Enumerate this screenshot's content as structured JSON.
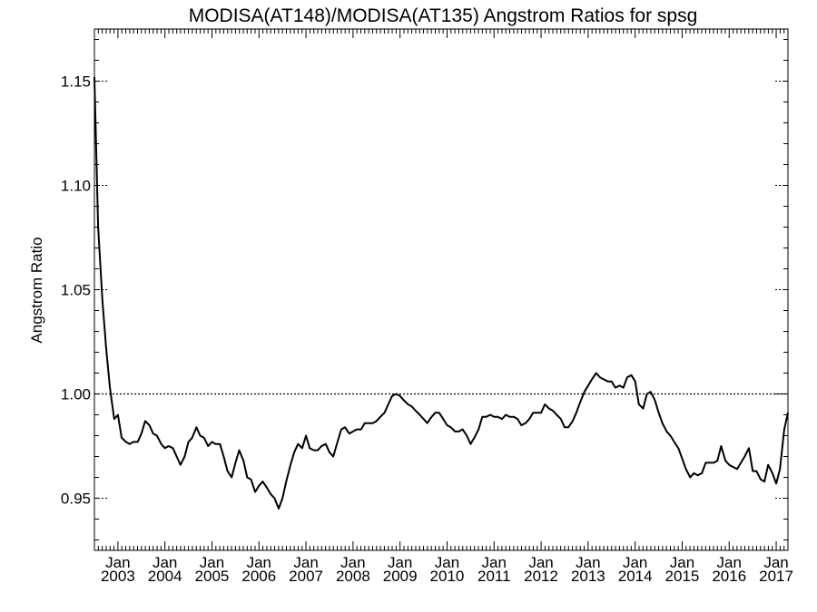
{
  "chart_data": {
    "type": "line",
    "title": "MODISA(AT148)/MODISA(AT135)  Angstrom Ratios for spsg",
    "xlabel": "",
    "ylabel": "Angstrom Ratio",
    "ylim": [
      0.925,
      1.175
    ],
    "yticks": [
      "0.95",
      "1.00",
      "1.05",
      "1.10",
      "1.15"
    ],
    "xlim": [
      2002.5,
      2017.25
    ],
    "xticks": [
      {
        "month": "Jan",
        "year": "2003"
      },
      {
        "month": "Jan",
        "year": "2004"
      },
      {
        "month": "Jan",
        "year": "2005"
      },
      {
        "month": "Jan",
        "year": "2006"
      },
      {
        "month": "Jan",
        "year": "2007"
      },
      {
        "month": "Jan",
        "year": "2008"
      },
      {
        "month": "Jan",
        "year": "2009"
      },
      {
        "month": "Jan",
        "year": "2010"
      },
      {
        "month": "Jan",
        "year": "2011"
      },
      {
        "month": "Jan",
        "year": "2012"
      },
      {
        "month": "Jan",
        "year": "2013"
      },
      {
        "month": "Jan",
        "year": "2014"
      },
      {
        "month": "Jan",
        "year": "2015"
      },
      {
        "month": "Jan",
        "year": "2016"
      },
      {
        "month": "Jan",
        "year": "2017"
      }
    ],
    "reference_line": 1.0,
    "grid": false,
    "series": [
      {
        "values": [
          [
            2002.5,
            1.152
          ],
          [
            2002.58,
            1.08
          ],
          [
            2002.67,
            1.045
          ],
          [
            2002.75,
            1.022
          ],
          [
            2002.83,
            1.003
          ],
          [
            2002.92,
            0.988
          ],
          [
            2003.0,
            0.99
          ],
          [
            2003.08,
            0.979
          ],
          [
            2003.17,
            0.977
          ],
          [
            2003.25,
            0.976
          ],
          [
            2003.33,
            0.977
          ],
          [
            2003.42,
            0.977
          ],
          [
            2003.5,
            0.981
          ],
          [
            2003.58,
            0.987
          ],
          [
            2003.67,
            0.985
          ],
          [
            2003.75,
            0.981
          ],
          [
            2003.83,
            0.98
          ],
          [
            2003.92,
            0.976
          ],
          [
            2004.0,
            0.974
          ],
          [
            2004.08,
            0.975
          ],
          [
            2004.17,
            0.974
          ],
          [
            2004.25,
            0.97
          ],
          [
            2004.33,
            0.966
          ],
          [
            2004.42,
            0.97
          ],
          [
            2004.5,
            0.977
          ],
          [
            2004.58,
            0.979
          ],
          [
            2004.67,
            0.984
          ],
          [
            2004.75,
            0.98
          ],
          [
            2004.83,
            0.979
          ],
          [
            2004.92,
            0.975
          ],
          [
            2005.0,
            0.977
          ],
          [
            2005.08,
            0.976
          ],
          [
            2005.17,
            0.976
          ],
          [
            2005.25,
            0.97
          ],
          [
            2005.33,
            0.963
          ],
          [
            2005.42,
            0.96
          ],
          [
            2005.5,
            0.967
          ],
          [
            2005.58,
            0.973
          ],
          [
            2005.67,
            0.968
          ],
          [
            2005.75,
            0.96
          ],
          [
            2005.83,
            0.959
          ],
          [
            2005.92,
            0.953
          ],
          [
            2006.0,
            0.956
          ],
          [
            2006.08,
            0.958
          ],
          [
            2006.17,
            0.955
          ],
          [
            2006.25,
            0.952
          ],
          [
            2006.33,
            0.95
          ],
          [
            2006.42,
            0.945
          ],
          [
            2006.5,
            0.95
          ],
          [
            2006.58,
            0.958
          ],
          [
            2006.67,
            0.966
          ],
          [
            2006.75,
            0.972
          ],
          [
            2006.83,
            0.976
          ],
          [
            2006.92,
            0.974
          ],
          [
            2007.0,
            0.98
          ],
          [
            2007.08,
            0.974
          ],
          [
            2007.17,
            0.973
          ],
          [
            2007.25,
            0.973
          ],
          [
            2007.33,
            0.975
          ],
          [
            2007.42,
            0.976
          ],
          [
            2007.5,
            0.972
          ],
          [
            2007.58,
            0.97
          ],
          [
            2007.67,
            0.977
          ],
          [
            2007.75,
            0.983
          ],
          [
            2007.83,
            0.984
          ],
          [
            2007.92,
            0.981
          ],
          [
            2008.0,
            0.982
          ],
          [
            2008.08,
            0.983
          ],
          [
            2008.17,
            0.983
          ],
          [
            2008.25,
            0.986
          ],
          [
            2008.33,
            0.986
          ],
          [
            2008.42,
            0.986
          ],
          [
            2008.5,
            0.987
          ],
          [
            2008.58,
            0.989
          ],
          [
            2008.67,
            0.991
          ],
          [
            2008.75,
            0.995
          ],
          [
            2008.83,
            0.999
          ],
          [
            2008.92,
            1.0
          ],
          [
            2009.0,
            0.999
          ],
          [
            2009.08,
            0.997
          ],
          [
            2009.17,
            0.995
          ],
          [
            2009.25,
            0.994
          ],
          [
            2009.33,
            0.992
          ],
          [
            2009.42,
            0.99
          ],
          [
            2009.5,
            0.988
          ],
          [
            2009.58,
            0.986
          ],
          [
            2009.67,
            0.989
          ],
          [
            2009.75,
            0.991
          ],
          [
            2009.83,
            0.991
          ],
          [
            2009.92,
            0.988
          ],
          [
            2010.0,
            0.985
          ],
          [
            2010.08,
            0.984
          ],
          [
            2010.17,
            0.982
          ],
          [
            2010.25,
            0.982
          ],
          [
            2010.33,
            0.983
          ],
          [
            2010.42,
            0.98
          ],
          [
            2010.5,
            0.976
          ],
          [
            2010.58,
            0.979
          ],
          [
            2010.67,
            0.983
          ],
          [
            2010.75,
            0.989
          ],
          [
            2010.83,
            0.989
          ],
          [
            2010.92,
            0.99
          ],
          [
            2011.0,
            0.989
          ],
          [
            2011.08,
            0.989
          ],
          [
            2011.17,
            0.988
          ],
          [
            2011.25,
            0.99
          ],
          [
            2011.33,
            0.989
          ],
          [
            2011.42,
            0.989
          ],
          [
            2011.5,
            0.988
          ],
          [
            2011.58,
            0.985
          ],
          [
            2011.67,
            0.986
          ],
          [
            2011.75,
            0.988
          ],
          [
            2011.83,
            0.991
          ],
          [
            2011.92,
            0.991
          ],
          [
            2012.0,
            0.991
          ],
          [
            2012.08,
            0.995
          ],
          [
            2012.17,
            0.993
          ],
          [
            2012.25,
            0.992
          ],
          [
            2012.33,
            0.99
          ],
          [
            2012.42,
            0.988
          ],
          [
            2012.5,
            0.984
          ],
          [
            2012.58,
            0.984
          ],
          [
            2012.67,
            0.987
          ],
          [
            2012.75,
            0.991
          ],
          [
            2012.83,
            0.996
          ],
          [
            2012.92,
            1.001
          ],
          [
            2013.0,
            1.004
          ],
          [
            2013.08,
            1.007
          ],
          [
            2013.17,
            1.01
          ],
          [
            2013.25,
            1.008
          ],
          [
            2013.33,
            1.007
          ],
          [
            2013.42,
            1.006
          ],
          [
            2013.5,
            1.006
          ],
          [
            2013.58,
            1.003
          ],
          [
            2013.67,
            1.004
          ],
          [
            2013.75,
            1.003
          ],
          [
            2013.83,
            1.008
          ],
          [
            2013.92,
            1.009
          ],
          [
            2014.0,
            1.006
          ],
          [
            2014.08,
            0.995
          ],
          [
            2014.17,
            0.993
          ],
          [
            2014.25,
            1.0
          ],
          [
            2014.33,
            1.001
          ],
          [
            2014.42,
            0.997
          ],
          [
            2014.5,
            0.991
          ],
          [
            2014.58,
            0.986
          ],
          [
            2014.67,
            0.982
          ],
          [
            2014.75,
            0.98
          ],
          [
            2014.83,
            0.977
          ],
          [
            2014.92,
            0.974
          ],
          [
            2015.0,
            0.969
          ],
          [
            2015.08,
            0.964
          ],
          [
            2015.17,
            0.96
          ],
          [
            2015.25,
            0.962
          ],
          [
            2015.33,
            0.961
          ],
          [
            2015.42,
            0.962
          ],
          [
            2015.5,
            0.967
          ],
          [
            2015.58,
            0.967
          ],
          [
            2015.67,
            0.967
          ],
          [
            2015.75,
            0.968
          ],
          [
            2015.83,
            0.975
          ],
          [
            2015.92,
            0.968
          ],
          [
            2016.0,
            0.966
          ],
          [
            2016.08,
            0.965
          ],
          [
            2016.17,
            0.964
          ],
          [
            2016.25,
            0.967
          ],
          [
            2016.33,
            0.97
          ],
          [
            2016.42,
            0.974
          ],
          [
            2016.5,
            0.963
          ],
          [
            2016.58,
            0.963
          ],
          [
            2016.67,
            0.959
          ],
          [
            2016.75,
            0.958
          ],
          [
            2016.83,
            0.966
          ],
          [
            2016.92,
            0.962
          ],
          [
            2017.0,
            0.957
          ],
          [
            2017.08,
            0.964
          ],
          [
            2017.17,
            0.983
          ],
          [
            2017.25,
            0.991
          ]
        ]
      }
    ]
  }
}
